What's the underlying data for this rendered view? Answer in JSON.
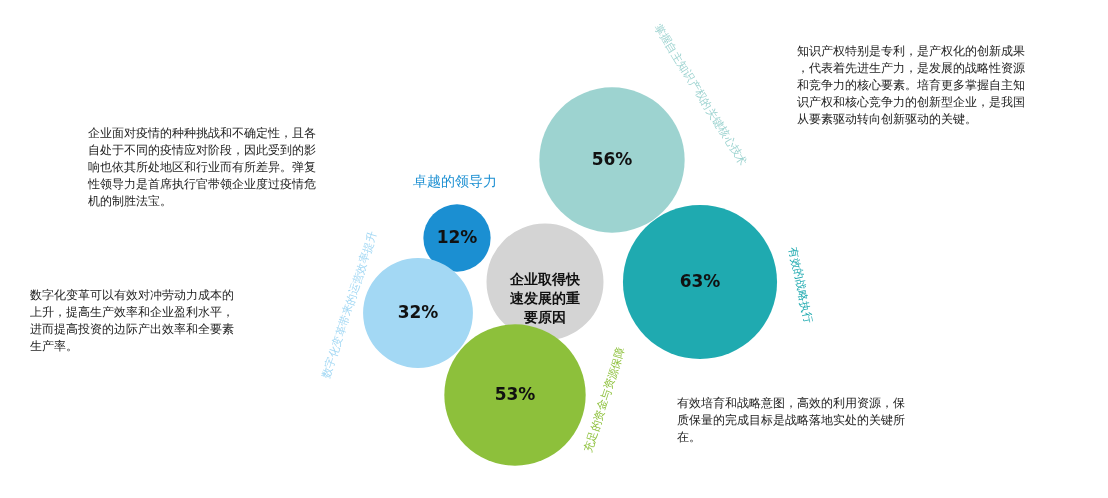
{
  "chart_data": {
    "type": "other",
    "title": "企业取得快速发展的重要原因",
    "categories": [
      "卓越的领导力",
      "数字化变革带来的运营效率提升",
      "掌握自主知识产权的关键核心技术",
      "有效的战略执行",
      "充足的资金与资源保障"
    ],
    "values": [
      12,
      32,
      56,
      63,
      53
    ],
    "value_labels": [
      "12%",
      "32%",
      "56%",
      "63%",
      "53%"
    ],
    "colors": [
      "#1b8fd2",
      "#a3d8f4",
      "#9dd3d0",
      "#1faab0",
      "#8dc03b"
    ],
    "annotations": [
      "企业面对疫情的种种挑战和不确定性，且各自处于不同的疫情应对阶段，因此受到的影响也依其所处地区和行业而有所差异。弹复性领导力是首席执行官带领企业度过疫情危机的制胜法宝。",
      "数字化变革可以有效对冲劳动力成本的上升，提高生产效率和企业盈利水平，进而提高投资的边际产出效率和全要素生产率。",
      "知识产权特别是专利，是产权化的创新成果，代表着先进生产力，是发展的战略性资源和竞争力的核心要素。培育更多掌握自主知识产权和核心竞争力的创新型企业，是我国从要素驱动转向创新驱动的关键。",
      "有效培育和战略意图，高效的利用资源，保质保量的完成目标是战略落地实处的关键所在。"
    ]
  }
}
